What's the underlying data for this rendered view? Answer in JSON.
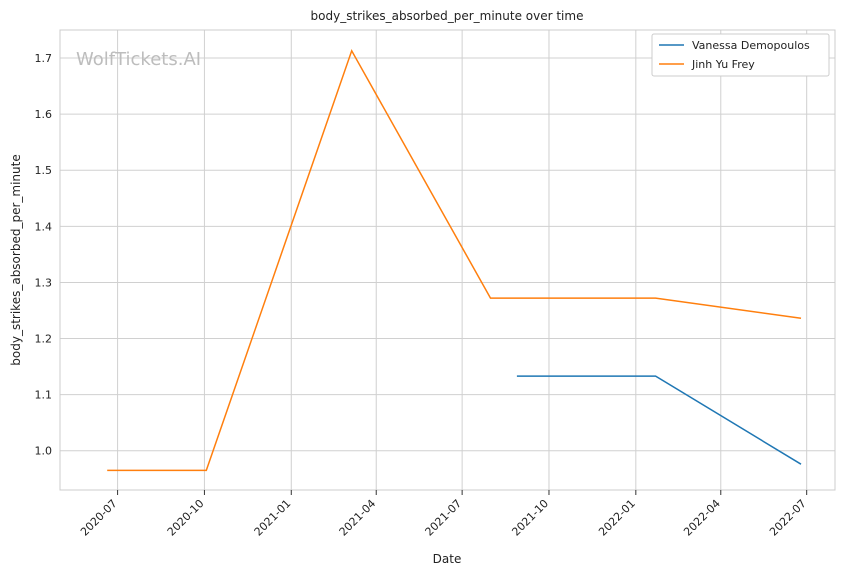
{
  "chart_data": {
    "type": "line",
    "title": "body_strikes_absorbed_per_minute over time",
    "xlabel": "Date",
    "ylabel": "body_strikes_absorbed_per_minute",
    "watermark": "WolfTickets.AI",
    "x_ticks": [
      "2020-07",
      "2020-10",
      "2021-01",
      "2021-04",
      "2021-07",
      "2021-10",
      "2022-01",
      "2022-04",
      "2022-07"
    ],
    "y_ticks": [
      "1.0",
      "1.1",
      "1.2",
      "1.3",
      "1.4",
      "1.5",
      "1.6",
      "1.7"
    ],
    "xlim": [
      "2020-05-01",
      "2022-07-31"
    ],
    "ylim": [
      0.93,
      1.75
    ],
    "grid": true,
    "legend": "top-right",
    "series": [
      {
        "name": "Vanessa Demopoulos",
        "color": "#1f77b4",
        "points": [
          {
            "x": "2021-08-28",
            "y": 1.133
          },
          {
            "x": "2022-01-22",
            "y": 1.133
          },
          {
            "x": "2022-06-25",
            "y": 0.976
          }
        ]
      },
      {
        "name": "Jinh Yu Frey",
        "color": "#ff7f0e",
        "points": [
          {
            "x": "2020-06-20",
            "y": 0.965
          },
          {
            "x": "2020-10-03",
            "y": 0.965
          },
          {
            "x": "2021-03-06",
            "y": 1.713
          },
          {
            "x": "2021-07-31",
            "y": 1.272
          },
          {
            "x": "2022-01-22",
            "y": 1.272
          },
          {
            "x": "2022-06-25",
            "y": 1.236
          }
        ]
      }
    ]
  }
}
